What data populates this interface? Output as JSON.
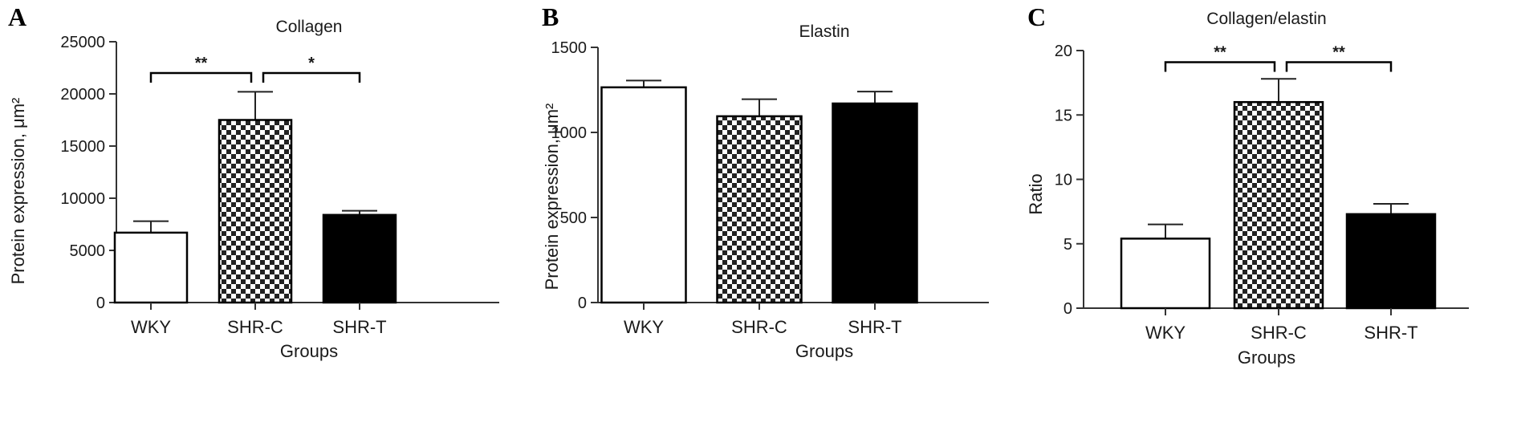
{
  "chart_data": [
    {
      "panel": "A",
      "type": "bar",
      "title": "Collagen",
      "xlabel": "Groups",
      "ylabel": "Protein expression, μm²",
      "ylim": [
        0,
        25000
      ],
      "yticks": [
        0,
        5000,
        10000,
        15000,
        20000,
        25000
      ],
      "categories": [
        "WKY",
        "SHR-C",
        "SHR-T"
      ],
      "values": [
        6700,
        17500,
        8400
      ],
      "errors": [
        1100,
        2700,
        400
      ],
      "fills": [
        "white",
        "checker",
        "black"
      ],
      "significance": [
        {
          "from": 0,
          "to": 1,
          "label": "**",
          "y": 22000
        },
        {
          "from": 1,
          "to": 2,
          "label": "*",
          "y": 22000
        }
      ]
    },
    {
      "panel": "B",
      "type": "bar",
      "title": "Elastin",
      "xlabel": "Groups",
      "ylabel": "Protein expression, μm²",
      "ylim": [
        0,
        1500
      ],
      "yticks": [
        0,
        500,
        1000,
        1500
      ],
      "categories": [
        "WKY",
        "SHR-C",
        "SHR-T"
      ],
      "values": [
        1265,
        1095,
        1170
      ],
      "errors": [
        40,
        100,
        70
      ],
      "fills": [
        "white",
        "checker",
        "black"
      ],
      "significance": []
    },
    {
      "panel": "C",
      "type": "bar",
      "title": "Collagen/elastin",
      "xlabel": "Groups",
      "ylabel": "Ratio",
      "ylim": [
        0,
        20
      ],
      "yticks": [
        0,
        5,
        10,
        15,
        20
      ],
      "categories": [
        "WKY",
        "SHR-C",
        "SHR-T"
      ],
      "values": [
        5.4,
        16.0,
        7.3
      ],
      "errors": [
        1.1,
        1.8,
        0.8
      ],
      "fills": [
        "white",
        "checker",
        "black"
      ],
      "significance": [
        {
          "from": 0,
          "to": 1,
          "label": "**",
          "y": 19.1
        },
        {
          "from": 1,
          "to": 2,
          "label": "**",
          "y": 19.1
        }
      ]
    }
  ]
}
